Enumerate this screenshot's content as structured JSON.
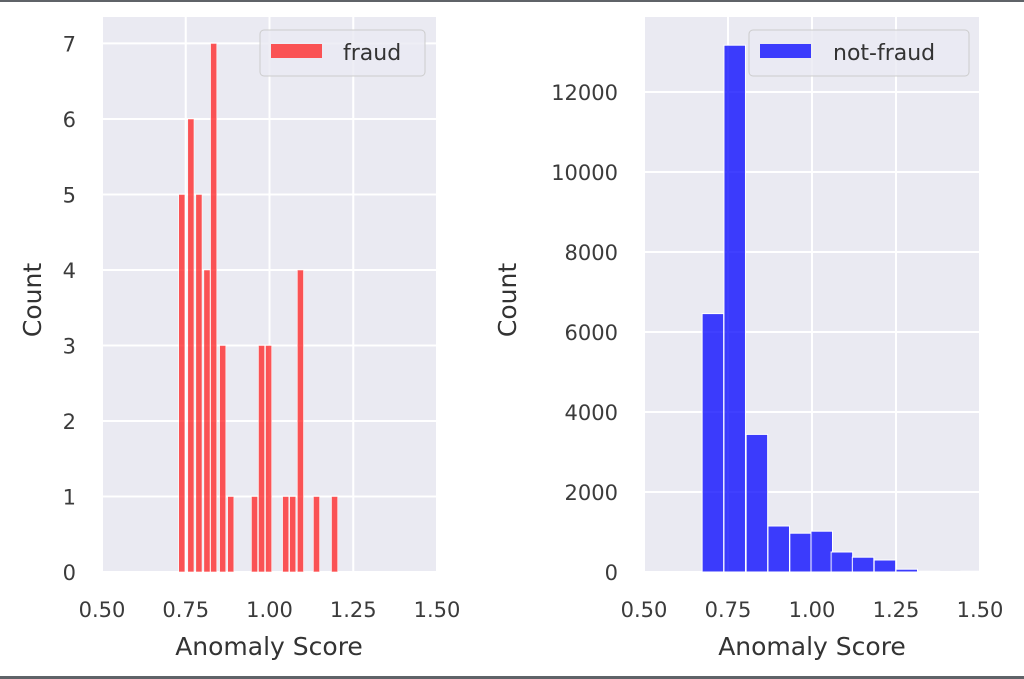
{
  "figure": {
    "panels": [
      {
        "legend": "fraud",
        "xlabel": "Anomaly Score",
        "ylabel": "Count",
        "color": "#ff1f1f"
      },
      {
        "legend": "not-fraud",
        "xlabel": "Anomaly Score",
        "ylabel": "Count",
        "color": "#0000ff"
      }
    ]
  },
  "chart_data": [
    {
      "type": "bar",
      "title": "",
      "subtitle": "histogram",
      "xlabel": "Anomaly Score",
      "ylabel": "Count",
      "xlim": [
        0.5,
        1.5
      ],
      "ylim": [
        0,
        7.35
      ],
      "xticks": [
        "0.50",
        "0.75",
        "1.00",
        "1.25",
        "1.50"
      ],
      "yticks": [
        "0",
        "1",
        "2",
        "3",
        "4",
        "5",
        "6",
        "7"
      ],
      "grid": true,
      "legend_position": "upper right",
      "series": [
        {
          "name": "fraud",
          "color": "#ff1f1f",
          "bin_width": 0.021,
          "x": [
            0.729,
            0.756,
            0.78,
            0.804,
            0.824,
            0.851,
            0.875,
            0.946,
            0.967,
            0.988,
            1.039,
            1.06,
            1.083,
            1.131,
            1.185
          ],
          "values": [
            5,
            6,
            5,
            4,
            7,
            3,
            1,
            1,
            3,
            3,
            1,
            1,
            4,
            1,
            1
          ]
        }
      ]
    },
    {
      "type": "bar",
      "title": "",
      "subtitle": "histogram",
      "xlabel": "Anomaly Score",
      "ylabel": "Count",
      "xlim": [
        0.5,
        1.5
      ],
      "ylim": [
        0,
        13875
      ],
      "xticks": [
        "0.50",
        "0.75",
        "1.00",
        "1.25",
        "1.50"
      ],
      "yticks": [
        "0",
        "2000",
        "4000",
        "6000",
        "8000",
        "10000",
        "12000"
      ],
      "grid": true,
      "legend_position": "upper right",
      "series": [
        {
          "name": "not-fraud",
          "color": "#0000ff",
          "bin_width": 0.064,
          "x": [
            0.673,
            0.738,
            0.804,
            0.869,
            0.934,
            0.997,
            1.057,
            1.12,
            1.185,
            1.25,
            1.316,
            1.38,
            1.443
          ],
          "values": [
            6460,
            13170,
            3440,
            1150,
            970,
            1020,
            500,
            370,
            300,
            70,
            20,
            10,
            20
          ]
        }
      ]
    }
  ]
}
